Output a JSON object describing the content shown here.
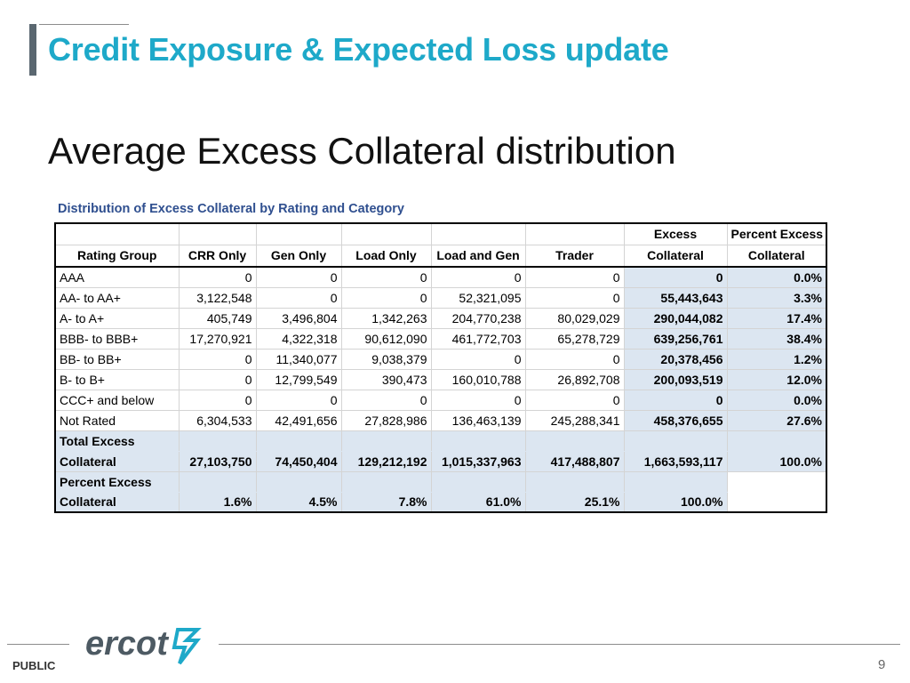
{
  "slide": {
    "title": "Credit Exposure & Expected Loss update",
    "subtitle": "Average Excess Collateral distribution"
  },
  "table": {
    "caption": "Distribution of Excess Collateral by Rating and Category",
    "headers": {
      "rating_group": "Rating Group",
      "crr_only": "CRR Only",
      "gen_only": "Gen Only",
      "load_only": "Load Only",
      "load_and_gen": "Load and Gen",
      "trader": "Trader",
      "excess_line1": "Excess",
      "excess_line2": "Collateral",
      "percent_line1": "Percent Excess",
      "percent_line2": "Collateral"
    },
    "rows": [
      {
        "group": "AAA",
        "crr": "0",
        "gen": "0",
        "load": "0",
        "loadgen": "0",
        "trader": "0",
        "excess": "0",
        "pct": "0.0%"
      },
      {
        "group": "AA- to AA+",
        "crr": "3,122,548",
        "gen": "0",
        "load": "0",
        "loadgen": "52,321,095",
        "trader": "0",
        "excess": "55,443,643",
        "pct": "3.3%"
      },
      {
        "group": "A- to A+",
        "crr": "405,749",
        "gen": "3,496,804",
        "load": "1,342,263",
        "loadgen": "204,770,238",
        "trader": "80,029,029",
        "excess": "290,044,082",
        "pct": "17.4%"
      },
      {
        "group": "BBB- to BBB+",
        "crr": "17,270,921",
        "gen": "4,322,318",
        "load": "90,612,090",
        "loadgen": "461,772,703",
        "trader": "65,278,729",
        "excess": "639,256,761",
        "pct": "38.4%"
      },
      {
        "group": "BB- to BB+",
        "crr": "0",
        "gen": "11,340,077",
        "load": "9,038,379",
        "loadgen": "0",
        "trader": "0",
        "excess": "20,378,456",
        "pct": "1.2%"
      },
      {
        "group": "B- to B+",
        "crr": "0",
        "gen": "12,799,549",
        "load": "390,473",
        "loadgen": "160,010,788",
        "trader": "26,892,708",
        "excess": "200,093,519",
        "pct": "12.0%"
      },
      {
        "group": "CCC+ and below",
        "crr": "0",
        "gen": "0",
        "load": "0",
        "loadgen": "0",
        "trader": "0",
        "excess": "0",
        "pct": "0.0%"
      },
      {
        "group": "Not Rated",
        "crr": "6,304,533",
        "gen": "42,491,656",
        "load": "27,828,986",
        "loadgen": "136,463,139",
        "trader": "245,288,341",
        "excess": "458,376,655",
        "pct": "27.6%"
      }
    ],
    "total": {
      "label_line1": "Total Excess",
      "label_line2": "Collateral",
      "crr": "27,103,750",
      "gen": "74,450,404",
      "load": "129,212,192",
      "loadgen": "1,015,337,963",
      "trader": "417,488,807",
      "excess": "1,663,593,117",
      "pct": "100.0%"
    },
    "percent": {
      "label_line1": "Percent Excess",
      "label_line2": "Collateral",
      "crr": "1.6%",
      "gen": "4.5%",
      "load": "7.8%",
      "loadgen": "61.0%",
      "trader": "25.1%",
      "excess": "100.0%"
    },
    "shade_color": "#dce6f1"
  },
  "footer": {
    "logo_text": "ercot",
    "logo_icon": "ercot-lightning-icon",
    "public_label": "PUBLIC",
    "page_number": "9"
  },
  "colors": {
    "title": "#1ea9c9",
    "title_bar": "#5a6770",
    "caption": "#2f4f8f",
    "logo": "#4d5a63"
  }
}
